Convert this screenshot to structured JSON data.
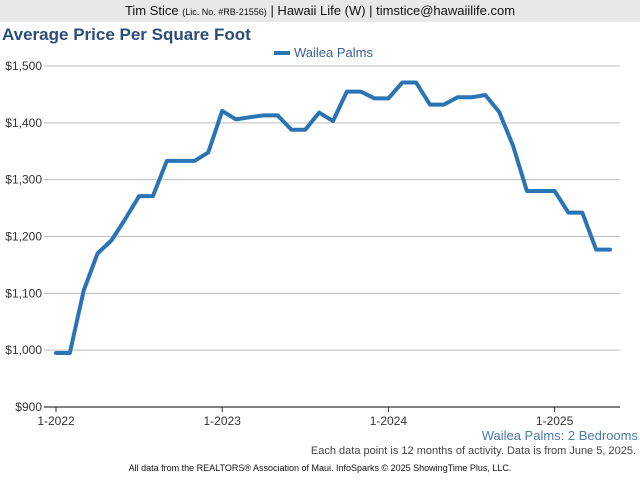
{
  "header": {
    "agent_name": "Tim Stice",
    "license": "(Lic. No. #RB-21556)",
    "rest": "| Hawaii Life (W) | timstice@hawaiilife.com"
  },
  "chart_data": {
    "type": "line",
    "title": "Average Price Per Square Foot",
    "subtitle": "Wailea Palms: 2 Bedrooms",
    "xlabel": "",
    "ylabel": "",
    "ylim": [
      900,
      1500
    ],
    "yticks": [
      900,
      1000,
      1100,
      1200,
      1300,
      1400,
      1500
    ],
    "ytick_labels": [
      "$900",
      "$1,000",
      "$1,100",
      "$1,200",
      "$1,300",
      "$1,400",
      "$1,500"
    ],
    "xtick_labels": [
      "1-2022",
      "1-2023",
      "1-2024",
      "1-2025"
    ],
    "xtick_indices": [
      0,
      12,
      24,
      36
    ],
    "legend_position": "top-center",
    "grid": true,
    "x": [
      "1-2022",
      "2-2022",
      "3-2022",
      "4-2022",
      "5-2022",
      "6-2022",
      "7-2022",
      "8-2022",
      "9-2022",
      "10-2022",
      "11-2022",
      "12-2022",
      "1-2023",
      "2-2023",
      "3-2023",
      "4-2023",
      "5-2023",
      "6-2023",
      "7-2023",
      "8-2023",
      "9-2023",
      "10-2023",
      "11-2023",
      "12-2023",
      "1-2024",
      "2-2024",
      "3-2024",
      "4-2024",
      "5-2024",
      "6-2024",
      "7-2024",
      "8-2024",
      "9-2024",
      "10-2024",
      "11-2024",
      "12-2024",
      "1-2025",
      "2-2025",
      "3-2025",
      "4-2025",
      "5-2025"
    ],
    "series": [
      {
        "name": "Wailea Palms",
        "color": "#2a74b4",
        "values": [
          995,
          995,
          1105,
          1170,
          1193,
          1231,
          1271,
          1271,
          1333,
          1333,
          1333,
          1348,
          1421,
          1406,
          1410,
          1413,
          1413,
          1388,
          1388,
          1418,
          1403,
          1455,
          1455,
          1443,
          1443,
          1471,
          1471,
          1432,
          1432,
          1445,
          1445,
          1449,
          1419,
          1360,
          1280,
          1280,
          1280,
          1242,
          1242,
          1177,
          1177
        ]
      }
    ]
  },
  "notes": {
    "activity_note": "Each data point is 12 months of activity. Data is from June 5, 2025.",
    "footer": "All data from the REALTORS® Association of Maui. InfoSparks © 2025 ShowingTime Plus, LLC."
  }
}
